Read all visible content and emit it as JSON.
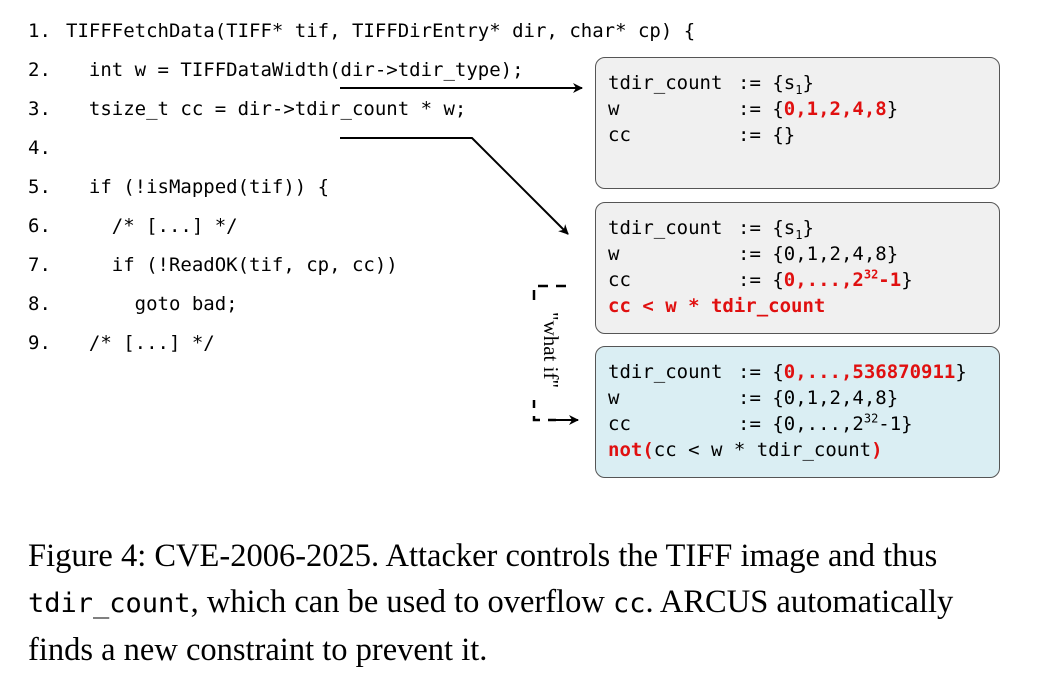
{
  "code": [
    {
      "num": "1.",
      "text": "TIFFFetchData(TIFF* tif, TIFFDirEntry* dir, char* cp) {"
    },
    {
      "num": "2.",
      "text": "  int w = TIFFDataWidth(dir->tdir_type);"
    },
    {
      "num": "3.",
      "text": "  tsize_t cc = dir->tdir_count * w;"
    },
    {
      "num": "4.",
      "text": ""
    },
    {
      "num": "5.",
      "text": "  if (!isMapped(tif)) {"
    },
    {
      "num": "6.",
      "text": "    /* [...] */"
    },
    {
      "num": "7.",
      "text": "    if (!ReadOK(tif, cp, cc))"
    },
    {
      "num": "8.",
      "text": "      goto bad;"
    },
    {
      "num": "9.",
      "text": "  /* [...] */"
    }
  ],
  "boxes": {
    "box1": {
      "tdir_count_lhs": "tdir_count",
      "tdir_count_rhs_pre": ":= {s",
      "tdir_count_sub": "1",
      "tdir_count_rhs_post": "}",
      "w_lhs": "w",
      "w_rhs_pre": ":= {",
      "w_rhs_red": "0,1,2,4,8",
      "w_rhs_post": "}",
      "cc_lhs": "cc",
      "cc_rhs": ":= {}"
    },
    "box2": {
      "tdir_count_lhs": "tdir_count",
      "tdir_count_rhs_pre": ":= {s",
      "tdir_count_sub": "1",
      "tdir_count_rhs_post": "}",
      "w_lhs": "w",
      "w_rhs": ":= {0,1,2,4,8}",
      "cc_lhs": "cc",
      "cc_rhs_pre": ":= {",
      "cc_rhs_red": "0,...,2",
      "cc_rhs_sup": "32",
      "cc_rhs_red2": "-1",
      "cc_rhs_post": "}",
      "constraint": "cc < w * tdir_count"
    },
    "box3": {
      "tdir_count_lhs": "tdir_count",
      "tdir_count_rhs_pre": ":= {",
      "tdir_count_rhs_red": "0,...,536870911",
      "tdir_count_rhs_post": "}",
      "w_lhs": "w",
      "w_rhs": ":= {0,1,2,4,8}",
      "cc_lhs": "cc",
      "cc_rhs_pre": ":= {0,...,2",
      "cc_rhs_sup": "32",
      "cc_rhs_post": "-1}",
      "not_open": "not(",
      "constraint": "cc < w * tdir_count",
      "not_close": ")"
    }
  },
  "whatif_label": "\"what if\"",
  "caption": {
    "part1": "Figure 4: CVE-2006-2025. Attacker controls the TIFF image and thus ",
    "mono1": "tdir_count",
    "part2": ", which can be used to overflow ",
    "mono2": "cc",
    "part3": ". ARCUS automatically finds a new constraint to prevent it."
  }
}
